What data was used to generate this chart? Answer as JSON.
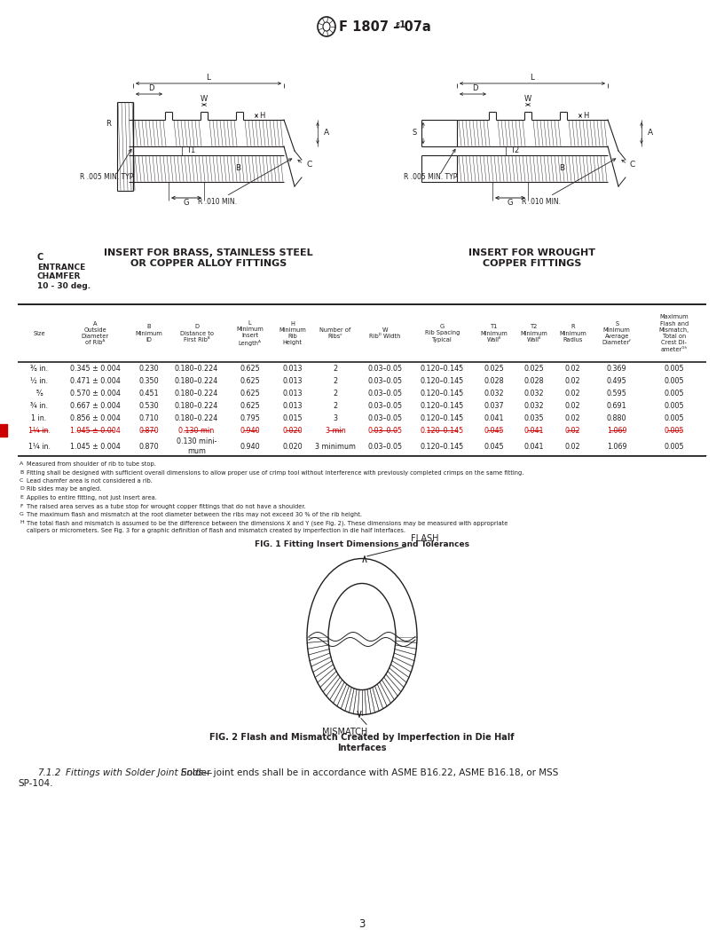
{
  "page_num": "3",
  "bg_color": "#ffffff",
  "text_color": "#231f20",
  "redline_color": "#cc0000",
  "fig1_left_caption": "INSERT FOR BRASS, STAINLESS STEEL\nOR COPPER ALLOY FITTINGS",
  "fig1_right_caption": "INSERT FOR WROUGHT\nCOPPER FITTINGS",
  "chamfer_label_c": "C",
  "chamfer_label_body": "ENTRANCE\nCHAMFER\n10 - 30 deg.",
  "fig1_caption": "FIG. 1 Fitting Insert Dimensions and Tolerances",
  "fig2_caption": "FIG. 2 Flash and Mismatch Created by Imperfection in Die Half\nInterfaces",
  "table_col_labels": [
    "Size",
    "A\nOutside\nDiameter\nof Ribᴬ",
    "B\nMinimum\nID",
    "D\nDistance to\nFirst Ribᴮ",
    "L\nMinimum\nInsert\nLengthᴬ",
    "H\nMinimum\nRib\nHeight",
    "Number of\nRibsᶜ",
    "W\nRibᴰ Width",
    "G\nRib Spacing\nTypical",
    "T1\nMinimum\nWallᴱ",
    "T2\nMinimum\nWallᴱ",
    "R\nMinimum\nRadius",
    "S\nMinimum\nAverage\nDiameterᶠ",
    "Maximum\nFlash and\nMismatch,\nTotal on\nCrest Di-\nameterᴳʰ"
  ],
  "table_rows_normal": [
    [
      "⅜ in.",
      "0.345 ± 0.004",
      "0.230",
      "0.180–0.224",
      "0.625",
      "0.013",
      "2",
      "0.03–0.05",
      "0.120–0.145",
      "0.025",
      "0.025",
      "0.02",
      "0.369",
      "0.005"
    ],
    [
      "½ in.",
      "0.471 ± 0.004",
      "0.350",
      "0.180–0.224",
      "0.625",
      "0.013",
      "2",
      "0.03–0.05",
      "0.120–0.145",
      "0.028",
      "0.028",
      "0.02",
      "0.495",
      "0.005"
    ],
    [
      "⅝",
      "0.570 ± 0.004",
      "0.451",
      "0.180–0.224",
      "0.625",
      "0.013",
      "2",
      "0.03–0.05",
      "0.120–0.145",
      "0.032",
      "0.032",
      "0.02",
      "0.595",
      "0.005"
    ],
    [
      "¾ in.",
      "0.667 ± 0.004",
      "0.530",
      "0.180–0.224",
      "0.625",
      "0.013",
      "2",
      "0.03–0.05",
      "0.120–0.145",
      "0.037",
      "0.032",
      "0.02",
      "0.691",
      "0.005"
    ],
    [
      "1 in.",
      "0.856 ± 0.004",
      "0.710",
      "0.180–0.224",
      "0.795",
      "0.015",
      "3",
      "0.03–0.05",
      "0.120–0.145",
      "0.041",
      "0.035",
      "0.02",
      "0.880",
      "0.005"
    ]
  ],
  "table_row_redline": [
    "1¼ in.",
    "1.045 ± 0.004",
    "0.870",
    "0.130 min",
    "0.940",
    "0.020",
    "3 min",
    "0.03–0.05",
    "0.120–0.145",
    "0.045",
    "0.041",
    "0.02",
    "1.069",
    "0.005"
  ],
  "table_row_new": [
    "1¼ in.",
    "1.045 ± 0.004",
    "0.870",
    "0.130 mini-\nmum",
    "0.940",
    "0.020",
    "3 minimum",
    "0.03–0.05",
    "0.120–0.145",
    "0.045",
    "0.041",
    "0.02",
    "1.069",
    "0.005"
  ],
  "footnotes": [
    [
      "A",
      "Measured from shoulder of rib to tube stop."
    ],
    [
      "B",
      "Fitting shall be designed with sufficient overall dimensions to allow proper use of crimp tool without interference with previously completed crimps on the same fitting."
    ],
    [
      "C",
      "Lead chamfer area is not considered a rib."
    ],
    [
      "D",
      "Rib sides may be angled."
    ],
    [
      "E",
      "Applies to entire fitting, not just insert area."
    ],
    [
      "F",
      "The raised area serves as a tube stop for wrought copper fittings that do not have a shoulder."
    ],
    [
      "G",
      "The maximum flash and mismatch at the root diameter between the ribs may not exceed 30 % of the rib height."
    ],
    [
      "H",
      "The total flash and mismatch is assumed to be the difference between the dimensions X and Y (see Fig. 2). These dimensions may be measured with appropriate\ncalipers or micrometers. See Fig. 3 for a graphic definition of flash and mismatch created by imperfection in die half interfaces."
    ]
  ],
  "bottom_para_num": "7.1.2",
  "bottom_para_italic": "Fittings with Solder Joint Ends—",
  "bottom_para_normal": " Solder joint ends shall be in accordance with ASME B16.22, ASME B16.18, or MSS\nSP-104."
}
